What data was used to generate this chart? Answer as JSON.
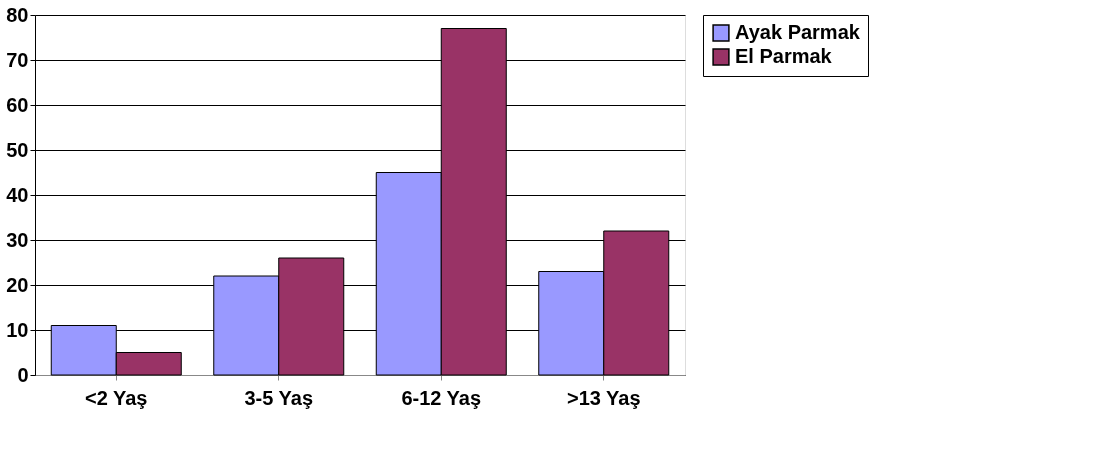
{
  "chart_data": {
    "type": "bar",
    "categories": [
      "<2 Yaş",
      "3-5 Yaş",
      "6-12 Yaş",
      ">13 Yaş"
    ],
    "series": [
      {
        "name": "Ayak Parmak",
        "color": "#9999ff",
        "values": [
          11,
          22,
          45,
          23
        ]
      },
      {
        "name": "El Parmak",
        "color": "#993366",
        "values": [
          5,
          26,
          77,
          32
        ]
      }
    ],
    "ylim": [
      0,
      80
    ],
    "yticks": [
      0,
      10,
      20,
      30,
      40,
      50,
      60,
      70,
      80
    ],
    "grid": "y",
    "legend": "right"
  }
}
